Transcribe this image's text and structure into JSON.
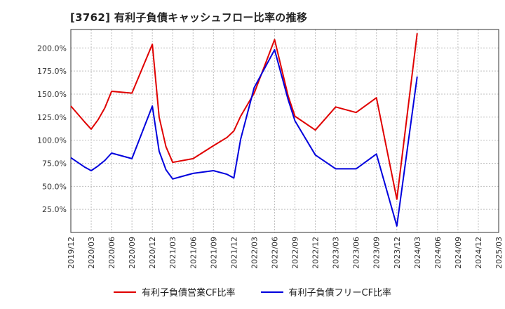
{
  "title": "[3762]  有利子負債キャッシュフロー比率の推移",
  "chart_data": {
    "type": "line",
    "y_ticks": [
      "25.0%",
      "50.0%",
      "75.0%",
      "100.0%",
      "125.0%",
      "150.0%",
      "175.0%",
      "200.0%"
    ],
    "y_tick_values": [
      25,
      50,
      75,
      100,
      125,
      150,
      175,
      200
    ],
    "ylim": [
      0,
      220
    ],
    "x_ticks": [
      "2019/12",
      "2020/03",
      "2020/06",
      "2020/09",
      "2020/12",
      "2021/03",
      "2021/06",
      "2021/09",
      "2021/12",
      "2022/03",
      "2022/06",
      "2022/09",
      "2022/12",
      "2023/03",
      "2023/06",
      "2023/09",
      "2023/12",
      "2024/03",
      "2024/06",
      "2024/09",
      "2024/12",
      "2025/03"
    ],
    "xlim": [
      "2019/12",
      "2025/03"
    ],
    "grid": true,
    "legend_position": "bottom",
    "series": [
      {
        "name": "有利子負債営業CF比率",
        "color": "#e00000",
        "points": [
          [
            "2019/12",
            137
          ],
          [
            "2020/02",
            120
          ],
          [
            "2020/03",
            112
          ],
          [
            "2020/04",
            122
          ],
          [
            "2020/05",
            135
          ],
          [
            "2020/06",
            153
          ],
          [
            "2020/09",
            151
          ],
          [
            "2020/12",
            204
          ],
          [
            "2021/01",
            125
          ],
          [
            "2021/02",
            93
          ],
          [
            "2021/03",
            76
          ],
          [
            "2021/06",
            80
          ],
          [
            "2021/09",
            94
          ],
          [
            "2021/11",
            103
          ],
          [
            "2021/12",
            110
          ],
          [
            "2022/01",
            126
          ],
          [
            "2022/03",
            151
          ],
          [
            "2022/06",
            209
          ],
          [
            "2022/08",
            148
          ],
          [
            "2022/09",
            126
          ],
          [
            "2022/12",
            111
          ],
          [
            "2023/03",
            136
          ],
          [
            "2023/06",
            130
          ],
          [
            "2023/09",
            146
          ],
          [
            "2023/12",
            36
          ],
          [
            "2024/03",
            216
          ]
        ]
      },
      {
        "name": "有利子負債フリーCF比率",
        "color": "#0000dd",
        "points": [
          [
            "2019/12",
            81
          ],
          [
            "2020/02",
            71
          ],
          [
            "2020/03",
            67
          ],
          [
            "2020/04",
            72
          ],
          [
            "2020/05",
            78
          ],
          [
            "2020/06",
            86
          ],
          [
            "2020/09",
            80
          ],
          [
            "2020/12",
            137
          ],
          [
            "2021/01",
            88
          ],
          [
            "2021/02",
            68
          ],
          [
            "2021/03",
            58
          ],
          [
            "2021/06",
            64
          ],
          [
            "2021/09",
            67
          ],
          [
            "2021/11",
            63
          ],
          [
            "2021/12",
            59
          ],
          [
            "2022/01",
            101
          ],
          [
            "2022/03",
            157
          ],
          [
            "2022/06",
            198
          ],
          [
            "2022/08",
            144
          ],
          [
            "2022/09",
            121
          ],
          [
            "2022/12",
            84
          ],
          [
            "2023/03",
            69
          ],
          [
            "2023/06",
            69
          ],
          [
            "2023/09",
            85
          ],
          [
            "2023/12",
            7
          ],
          [
            "2024/03",
            169
          ]
        ]
      }
    ]
  }
}
